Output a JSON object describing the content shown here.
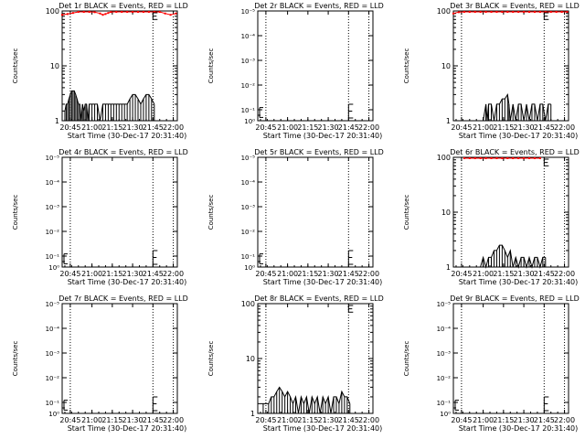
{
  "figure": {
    "xlabel": "Start Time (30-Dec-17 20:31:40)",
    "ylabel": "Counts/sec",
    "x_tick_labels": [
      "20:45",
      "21:00",
      "21:15",
      "21:30",
      "21:45",
      "22:00"
    ],
    "event_color": "#000000",
    "lld_color": "#ff0000"
  },
  "chart_data": [
    {
      "type": "line",
      "title": "Det 1r  BLACK = Events, RED = LLD",
      "scale": "log",
      "ytick_labels": [
        "1",
        "10",
        "100"
      ],
      "events": [
        [
          0,
          1.5
        ],
        [
          2,
          1.5
        ],
        [
          3,
          2
        ],
        [
          4,
          2
        ],
        [
          5,
          2.5
        ],
        [
          6,
          3
        ],
        [
          7,
          3.5
        ],
        [
          8,
          3.5
        ],
        [
          9,
          3.5
        ],
        [
          10,
          3
        ],
        [
          11,
          2.5
        ],
        [
          12,
          2
        ],
        [
          13,
          2
        ],
        [
          14,
          1
        ],
        [
          15,
          2
        ],
        [
          16,
          1.5
        ],
        [
          17,
          2
        ],
        [
          18,
          2
        ],
        [
          19,
          1
        ],
        [
          20,
          2
        ],
        [
          22,
          2
        ],
        [
          24,
          2
        ],
        [
          26,
          2
        ],
        [
          28,
          1
        ],
        [
          30,
          2
        ],
        [
          32,
          2
        ],
        [
          34,
          2
        ],
        [
          36,
          2
        ],
        [
          38,
          2
        ],
        [
          40,
          2
        ],
        [
          42,
          2
        ],
        [
          44,
          2
        ],
        [
          46,
          2
        ],
        [
          48,
          2
        ],
        [
          50,
          2.5
        ],
        [
          52,
          3
        ],
        [
          54,
          3
        ],
        [
          56,
          2.5
        ],
        [
          58,
          2
        ],
        [
          60,
          2.5
        ],
        [
          62,
          3
        ],
        [
          64,
          3
        ],
        [
          66,
          2.5
        ],
        [
          68,
          2
        ]
      ],
      "lld": [
        [
          0,
          85
        ],
        [
          4,
          88
        ],
        [
          8,
          92
        ],
        [
          12,
          97
        ],
        [
          16,
          100
        ],
        [
          20,
          98
        ],
        [
          24,
          95
        ],
        [
          28,
          90
        ],
        [
          30,
          85
        ],
        [
          32,
          88
        ],
        [
          34,
          92
        ],
        [
          36,
          96
        ],
        [
          40,
          99
        ],
        [
          44,
          99
        ],
        [
          48,
          99
        ],
        [
          52,
          99
        ],
        [
          56,
          99
        ],
        [
          60,
          99
        ],
        [
          64,
          99
        ],
        [
          68,
          99
        ],
        [
          72,
          99
        ],
        [
          76,
          90
        ],
        [
          80,
          85
        ],
        [
          84,
          90
        ]
      ],
      "lld_end": 85,
      "errorbar": {
        "x": 67,
        "low": 70,
        "high": 100
      }
    },
    {
      "type": "line",
      "title": "Det 2r  BLACK = Events, RED = LLD",
      "scale": "small",
      "ytick_labels": [
        "10⁰",
        "10⁻¹",
        "10⁻²",
        "10⁻³",
        "10⁻⁴",
        "10⁻⁵"
      ],
      "events": [],
      "lld": [],
      "lld_end": 85,
      "errorbar": {
        "x": 67,
        "low": 0.0,
        "high": 0.15
      }
    },
    {
      "type": "line",
      "title": "Det 3r  BLACK = Events, RED = LLD",
      "scale": "log",
      "ytick_labels": [
        "1",
        "10",
        "100"
      ],
      "events": [
        [
          22,
          1
        ],
        [
          24,
          2
        ],
        [
          25,
          1
        ],
        [
          26,
          2
        ],
        [
          28,
          2
        ],
        [
          30,
          1
        ],
        [
          32,
          2
        ],
        [
          34,
          2
        ],
        [
          36,
          2.5
        ],
        [
          38,
          2.5
        ],
        [
          40,
          3
        ],
        [
          41,
          2
        ],
        [
          42,
          1
        ],
        [
          44,
          2
        ],
        [
          46,
          1
        ],
        [
          48,
          2
        ],
        [
          50,
          2
        ],
        [
          52,
          1
        ],
        [
          54,
          2
        ],
        [
          56,
          1
        ],
        [
          58,
          2
        ],
        [
          60,
          2
        ],
        [
          62,
          1
        ],
        [
          64,
          2
        ],
        [
          66,
          2
        ],
        [
          68,
          1
        ],
        [
          70,
          2
        ],
        [
          72,
          2
        ]
      ],
      "lld": [
        [
          0,
          90
        ],
        [
          4,
          95
        ],
        [
          8,
          98
        ],
        [
          12,
          100
        ],
        [
          16,
          99
        ],
        [
          20,
          98
        ],
        [
          24,
          97
        ],
        [
          28,
          98
        ],
        [
          32,
          100
        ],
        [
          36,
          99
        ],
        [
          40,
          98
        ],
        [
          44,
          100
        ],
        [
          48,
          99
        ],
        [
          52,
          98
        ],
        [
          56,
          99
        ],
        [
          60,
          100
        ],
        [
          64,
          99
        ],
        [
          68,
          98
        ],
        [
          72,
          100
        ],
        [
          76,
          99
        ],
        [
          80,
          100
        ],
        [
          84,
          98
        ]
      ],
      "lld_end": 85,
      "errorbar": {
        "x": 67,
        "low": 70,
        "high": 100
      }
    },
    {
      "type": "line",
      "title": "Det 4r  BLACK = Events, RED = LLD",
      "scale": "small",
      "ytick_labels": [
        "10⁰",
        "10⁻¹",
        "10⁻²",
        "10⁻³",
        "10⁻⁴",
        "10⁻⁵"
      ],
      "events": [],
      "lld": [],
      "lld_end": 85,
      "errorbar": {
        "x": 67,
        "low": 0.0,
        "high": 0.15
      }
    },
    {
      "type": "line",
      "title": "Det 5r  BLACK = Events, RED = LLD",
      "scale": "small",
      "ytick_labels": [
        "10⁰",
        "10⁻¹",
        "10⁻²",
        "10⁻³",
        "10⁻⁴",
        "10⁻⁵"
      ],
      "events": [],
      "lld": [],
      "lld_end": 85,
      "errorbar": {
        "x": 67,
        "low": 0.0,
        "high": 0.15
      }
    },
    {
      "type": "line",
      "title": "Det 6r  BLACK = Events, RED = LLD",
      "scale": "log",
      "ytick_labels": [
        "1",
        "10",
        "100"
      ],
      "events": [
        [
          20,
          1
        ],
        [
          22,
          1.5
        ],
        [
          24,
          1
        ],
        [
          26,
          1.5
        ],
        [
          28,
          1.5
        ],
        [
          30,
          2
        ],
        [
          32,
          2
        ],
        [
          34,
          2.5
        ],
        [
          36,
          2.5
        ],
        [
          38,
          2
        ],
        [
          40,
          1.5
        ],
        [
          42,
          2
        ],
        [
          44,
          1
        ],
        [
          46,
          1.5
        ],
        [
          48,
          1
        ],
        [
          50,
          1.5
        ],
        [
          52,
          1.5
        ],
        [
          54,
          1
        ],
        [
          56,
          1.5
        ],
        [
          58,
          1
        ],
        [
          60,
          1.5
        ],
        [
          62,
          1.5
        ],
        [
          64,
          1
        ],
        [
          66,
          1.5
        ],
        [
          68,
          1.5
        ]
      ],
      "lld": [
        [
          8,
          98
        ],
        [
          12,
          100
        ],
        [
          16,
          99
        ],
        [
          20,
          98
        ],
        [
          24,
          100
        ],
        [
          28,
          99
        ],
        [
          32,
          100
        ],
        [
          36,
          99
        ],
        [
          40,
          100
        ],
        [
          44,
          99
        ],
        [
          48,
          100
        ],
        [
          52,
          99
        ],
        [
          56,
          100
        ],
        [
          60,
          99
        ],
        [
          64,
          100
        ]
      ],
      "lld_end": 85,
      "errorbar": {
        "x": 67,
        "low": 70,
        "high": 100
      }
    },
    {
      "type": "line",
      "title": "Det 7r  BLACK = Events, RED = LLD",
      "scale": "small",
      "ytick_labels": [
        "10⁰",
        "10⁻¹",
        "10⁻²",
        "10⁻³",
        "10⁻⁴",
        "10⁻⁵"
      ],
      "events": [],
      "lld": [],
      "lld_end": 85,
      "errorbar": {
        "x": 67,
        "low": 0.0,
        "high": 0.15
      }
    },
    {
      "type": "line",
      "title": "Det 8r  BLACK = Events, RED = LLD",
      "scale": "log",
      "ytick_labels": [
        "1",
        "10",
        "100"
      ],
      "events": [
        [
          0,
          1.5
        ],
        [
          4,
          1.5
        ],
        [
          8,
          1.5
        ],
        [
          10,
          2
        ],
        [
          12,
          2
        ],
        [
          14,
          2.5
        ],
        [
          16,
          3
        ],
        [
          18,
          2.5
        ],
        [
          20,
          2
        ],
        [
          22,
          2.5
        ],
        [
          24,
          2
        ],
        [
          26,
          1.5
        ],
        [
          28,
          2
        ],
        [
          30,
          1
        ],
        [
          32,
          2
        ],
        [
          34,
          1.5
        ],
        [
          36,
          2
        ],
        [
          38,
          1
        ],
        [
          40,
          2
        ],
        [
          42,
          1.5
        ],
        [
          44,
          2
        ],
        [
          46,
          1
        ],
        [
          48,
          2
        ],
        [
          50,
          1.5
        ],
        [
          52,
          2
        ],
        [
          54,
          1
        ],
        [
          56,
          2
        ],
        [
          58,
          2
        ],
        [
          60,
          1.5
        ],
        [
          62,
          2.5
        ],
        [
          64,
          2
        ],
        [
          66,
          2
        ],
        [
          68,
          1.5
        ]
      ],
      "lld": [],
      "lld_end": 85,
      "errorbar": {
        "x": 67,
        "low": 70,
        "high": 100
      }
    },
    {
      "type": "line",
      "title": "Det 9r  BLACK = Events, RED = LLD",
      "scale": "small",
      "ytick_labels": [
        "10⁰",
        "10⁻¹",
        "10⁻²",
        "10⁻³",
        "10⁻⁴",
        "10⁻⁵"
      ],
      "events": [],
      "lld": [],
      "lld_end": 85,
      "errorbar": {
        "x": 67,
        "low": 0.0,
        "high": 0.15
      }
    }
  ]
}
